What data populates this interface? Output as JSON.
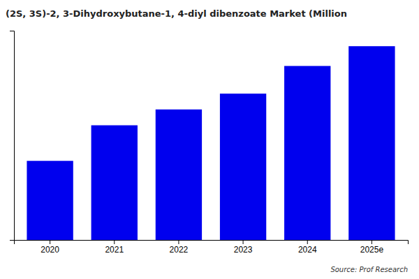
{
  "chart_data": {
    "type": "bar",
    "title": "(2S, 3S)-2, 3-Dihydroxybutane-1, 4-diyl dibenzoate Market (Million",
    "annotation": "Source: Prof Research",
    "categories": [
      "2020",
      "2021",
      "2022",
      "2023",
      "2024",
      "2025e"
    ],
    "values": [
      1.0,
      1.45,
      1.65,
      1.85,
      2.2,
      2.45
    ],
    "color": "#0000ee",
    "ylim": [
      0,
      2.646
    ],
    "yticks": [],
    "grid": false,
    "tick_labels": "x"
  }
}
